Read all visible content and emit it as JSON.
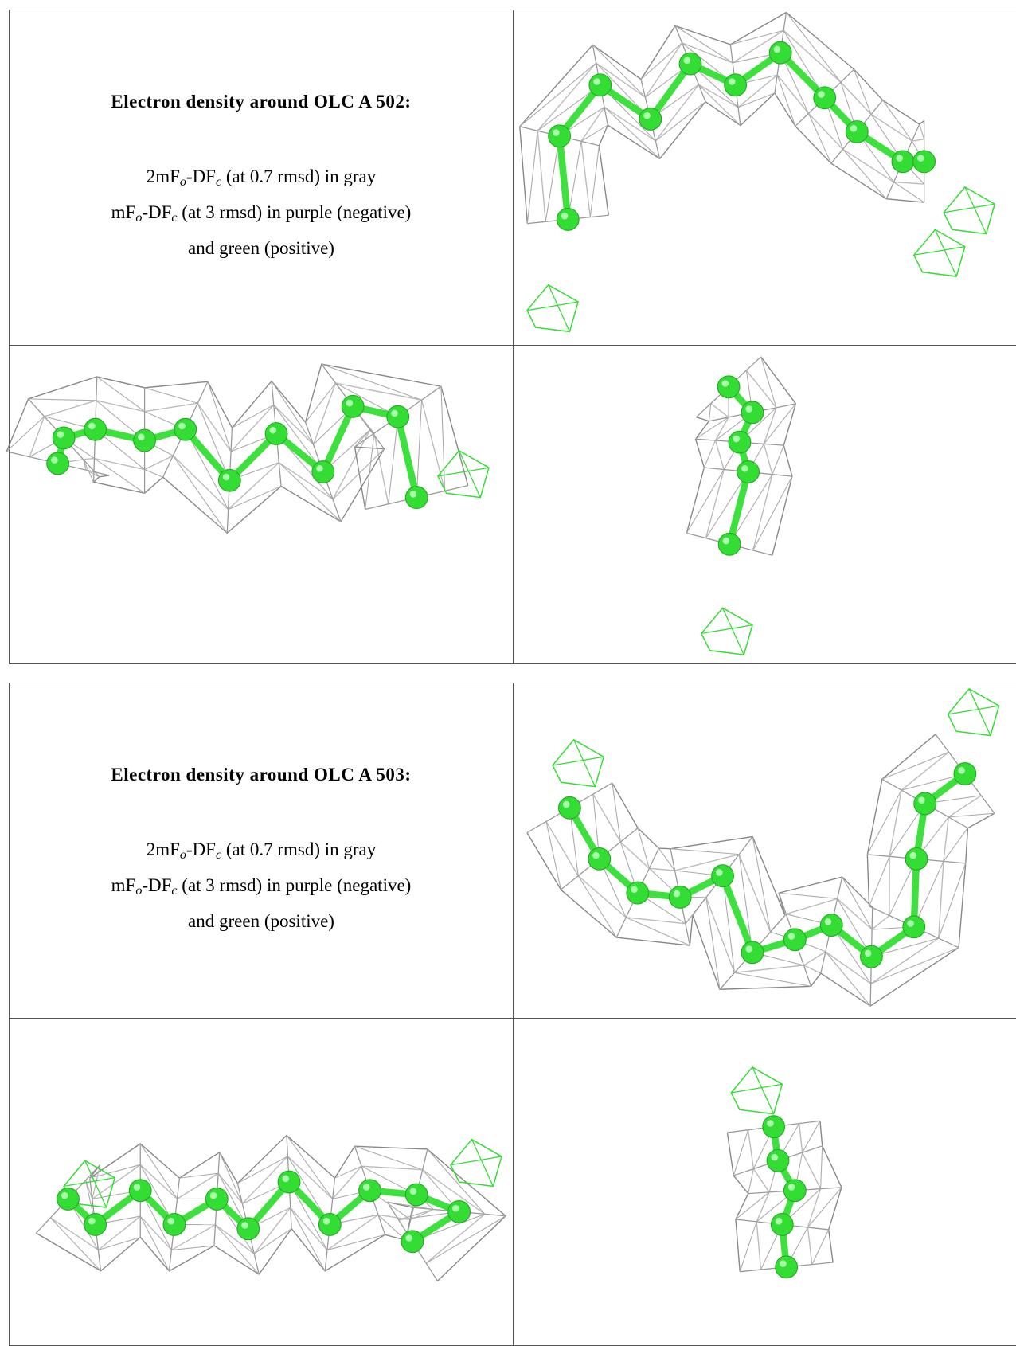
{
  "panels": [
    {
      "title": "Electron density around OLC A 502:",
      "lines": [
        [
          "2mF",
          "o",
          "-DF",
          "c",
          " (at 0.7 rmsd) in gray"
        ],
        [
          "mF",
          "o",
          "-DF",
          "c",
          " (at 3 rmsd) in purple (negative)"
        ],
        [
          "and green (positive)"
        ]
      ]
    },
    {
      "title": "Electron density around OLC A 503:",
      "lines": [
        [
          "2mF",
          "o",
          "-DF",
          "c",
          " (at 0.7 rmsd) in gray"
        ],
        [
          "mF",
          "o",
          "-DF",
          "c",
          " (at 3 rmsd) in purple (negative)"
        ],
        [
          "and green (positive)"
        ]
      ]
    }
  ]
}
